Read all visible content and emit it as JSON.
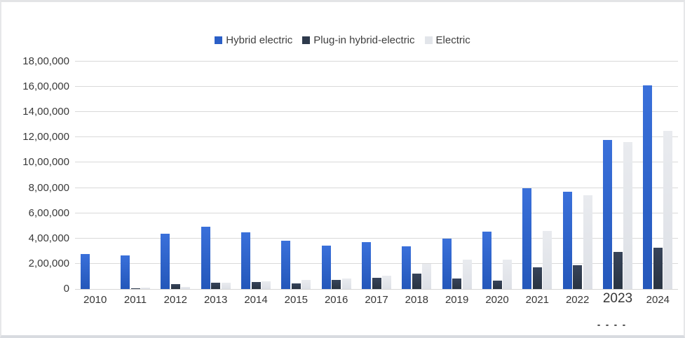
{
  "frame": {
    "background": "#ffffff",
    "border_color": "#dfe1e5",
    "gridline_color": "#d9d9d9",
    "text_color": "#3a3a3a"
  },
  "chart_data": {
    "type": "bar",
    "title": "",
    "xlabel": "",
    "ylabel": "",
    "categories": [
      "2010",
      "2011",
      "2012",
      "2013",
      "2014",
      "2015",
      "2016",
      "2017",
      "2018",
      "2019",
      "2020",
      "2021",
      "2022",
      "2023",
      "2024"
    ],
    "series": [
      {
        "name": "Hybrid electric",
        "color": "#2b5fc7",
        "values": [
          275000,
          265000,
          435000,
          495000,
          450000,
          380000,
          345000,
          370000,
          340000,
          400000,
          455000,
          800000,
          770000,
          1180000,
          1610000
        ]
      },
      {
        "name": "Plug-in hybrid-electric",
        "color": "#2e3a4c",
        "values": [
          0,
          8000,
          39000,
          49000,
          55000,
          43000,
          72000,
          90000,
          122000,
          84000,
          66000,
          174000,
          190000,
          295000,
          325000
        ]
      },
      {
        "name": "Electric",
        "color": "#e2e5ea",
        "values": [
          0,
          10000,
          14000,
          48000,
          63000,
          71000,
          85000,
          105000,
          200000,
          230000,
          235000,
          460000,
          745000,
          1165000,
          1250000
        ]
      }
    ],
    "ylim": [
      0,
      1800000
    ],
    "ytick_step": 200000,
    "ytick_labels": [
      "0",
      "2,00,000",
      "4,00,000",
      "6,00,000",
      "8,00,000",
      "10,00,000",
      "12,00,000",
      "14,00,000",
      "16,00,000",
      "18,00,000"
    ],
    "grid": true,
    "legend_position": "top",
    "number_format": "indian",
    "x_note": {
      "year": "2023",
      "text": "- - - -",
      "highlight_font": true
    }
  }
}
